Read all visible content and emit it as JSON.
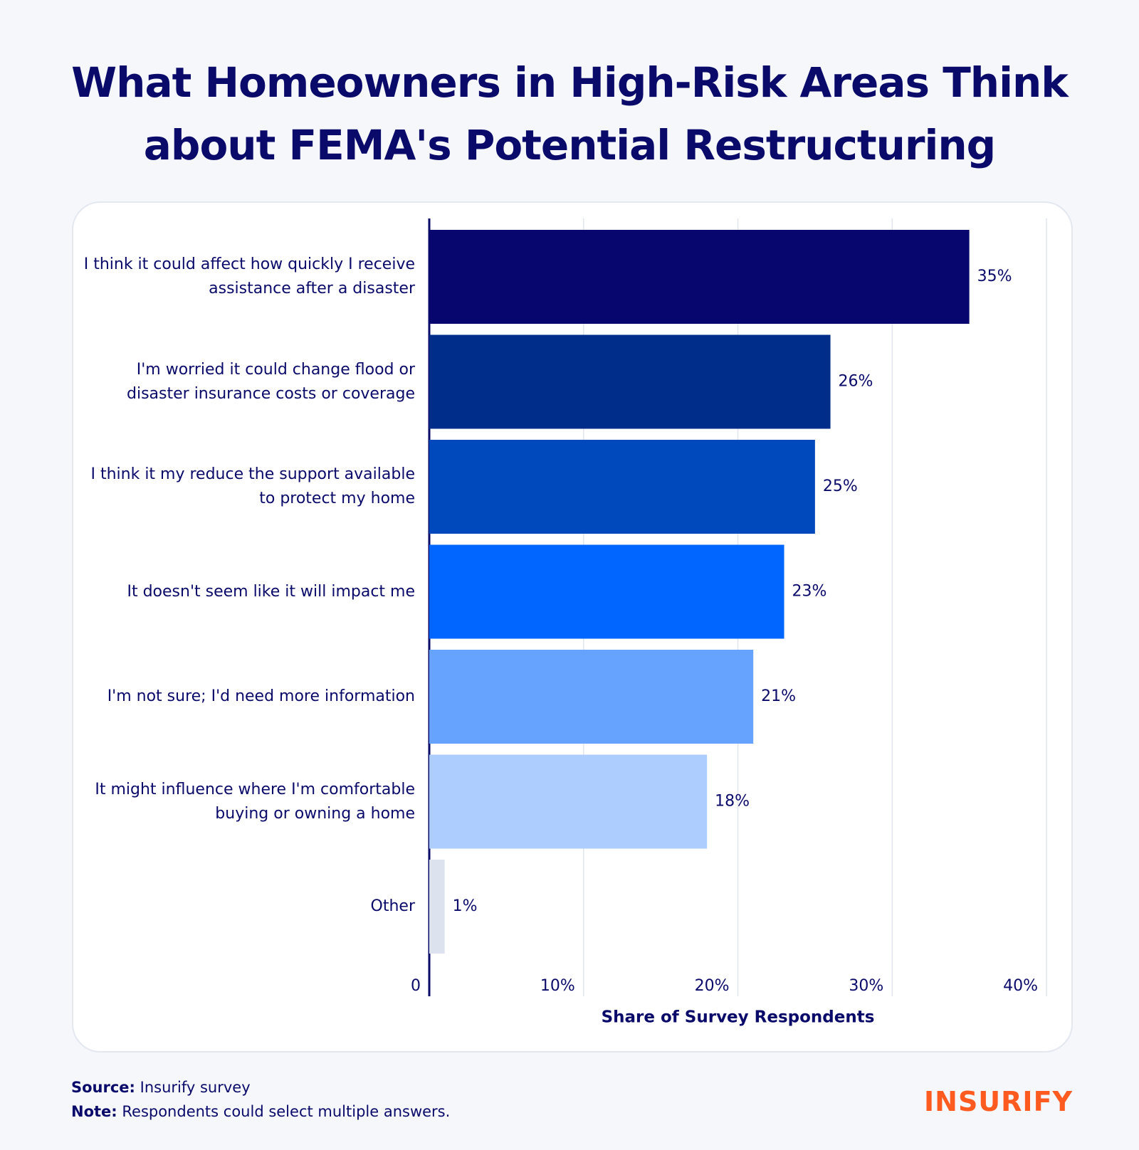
{
  "chart_data": {
    "type": "hbar",
    "title": "What Homeowners in High-Risk Areas Think about FEMA's Potential Restructuring",
    "x_label": "Share of Survey Respondents",
    "categories": [
      "I think it could affect how quickly I receive assistance after a disaster",
      "I'm worried it could change flood or disaster insurance costs or coverage",
      "I think it my reduce the support available to protect my home",
      "It doesn't seem like it will impact me",
      "I'm not sure; I'd need more information",
      "It might influence where I'm comfortable buying or owning a home",
      "Other"
    ],
    "values": [
      35,
      26,
      25,
      23,
      21,
      18,
      1
    ],
    "value_labels": [
      "35%",
      "26%",
      "25%",
      "23%",
      "21%",
      "18%",
      "1%"
    ],
    "colors": [
      "#06066e",
      "#002d8a",
      "#0049bd",
      "#0066ff",
      "#66a3ff",
      "#adcdff",
      "#dde3ee"
    ],
    "xlim": [
      0,
      40
    ],
    "xticks": [
      0,
      {
        "value": 10,
        "label": "10%"
      },
      {
        "value": 20,
        "label": "20%"
      },
      {
        "value": 30,
        "label": "30%"
      },
      {
        "value": 40,
        "label": "40%"
      }
    ],
    "grid": true
  },
  "footer": {
    "source_label": "Source:",
    "source": "Insurify survey",
    "note_label": "Note:",
    "note": "Respondents could select multiple answers.",
    "logo": "INSURIFY"
  }
}
